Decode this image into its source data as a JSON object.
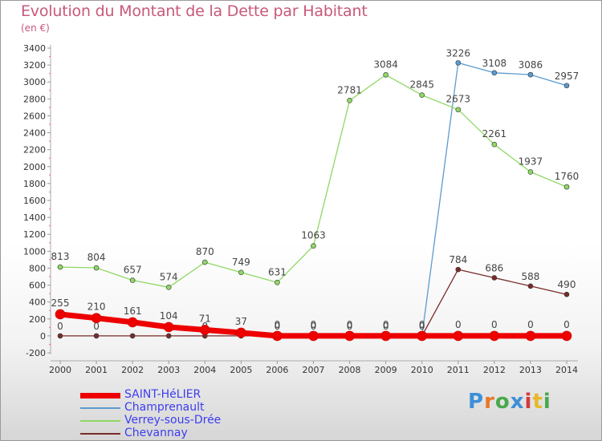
{
  "title": "Evolution du Montant de la Dette par Habitant",
  "subtitle": "(en €)",
  "logo": {
    "text": "Proxiti",
    "letter_colors": [
      "#3d8fd8",
      "#e8782a",
      "#4aa84a",
      "#3d8fd8",
      "#d23a3a",
      "#e8b82a",
      "#4aa84a"
    ]
  },
  "chart_data": {
    "type": "line",
    "title": "Evolution du Montant de la Dette par Habitant",
    "ylabel": "(en €)",
    "xlabel": "",
    "x": [
      2000,
      2001,
      2002,
      2003,
      2004,
      2005,
      2006,
      2007,
      2008,
      2009,
      2010,
      2011,
      2012,
      2013,
      2014
    ],
    "y_ticks": [
      -200,
      0,
      200,
      400,
      600,
      800,
      1000,
      1200,
      1400,
      1600,
      1800,
      2000,
      2200,
      2400,
      2600,
      2800,
      3000,
      3200,
      3400
    ],
    "ylim": [
      -200,
      3400
    ],
    "grid": false,
    "legend_position": "bottom-left",
    "series": [
      {
        "name": "Champrenault",
        "color": "#5b9bd0",
        "values": [
          null,
          null,
          null,
          null,
          null,
          null,
          null,
          null,
          null,
          null,
          0,
          3226,
          3108,
          3086,
          2957
        ],
        "labels": [
          "",
          "",
          "",
          "",
          "",
          "",
          "",
          "",
          "",
          "",
          "",
          "3226",
          "3108",
          "3086",
          "2957"
        ]
      },
      {
        "name": "Verrey-sous-Drée",
        "color": "#8fd866",
        "values": [
          813,
          804,
          657,
          574,
          870,
          749,
          631,
          1063,
          2781,
          3084,
          2845,
          2673,
          2261,
          1937,
          1760
        ],
        "labels": [
          "813",
          "804",
          "657",
          "574",
          "870",
          "749",
          "631",
          "1063",
          "2781",
          "3084",
          "2845",
          "2673",
          "2261",
          "1937",
          "1760"
        ]
      },
      {
        "name": "Chevannay",
        "color": "#7a2a2a",
        "values": [
          0,
          0,
          0,
          0,
          0,
          0,
          0,
          0,
          0,
          0,
          0,
          784,
          686,
          588,
          490
        ],
        "labels": [
          "0",
          "0",
          "",
          "",
          "0",
          "",
          "0",
          "0",
          "0",
          "0",
          "0",
          "784",
          "686",
          "588",
          "490"
        ]
      },
      {
        "name": "SAINT-HéLIER",
        "color": "#ee0000",
        "values": [
          255,
          210,
          161,
          104,
          71,
          37,
          0,
          0,
          0,
          0,
          0,
          0,
          0,
          0,
          0
        ],
        "labels": [
          "255",
          "210",
          "161",
          "104",
          "71",
          "37",
          "0",
          "0",
          "0",
          "0",
          "0",
          "0",
          "0",
          "0",
          "0"
        ]
      }
    ]
  },
  "legend": [
    {
      "label": "SAINT-HéLIER",
      "color": "#ee0000",
      "thick": true
    },
    {
      "label": "Champrenault",
      "color": "#5b9bd0",
      "thick": false
    },
    {
      "label": "Verrey-sous-Drée",
      "color": "#8fd866",
      "thick": false
    },
    {
      "label": "Chevannay",
      "color": "#7a2a2a",
      "thick": false
    }
  ]
}
